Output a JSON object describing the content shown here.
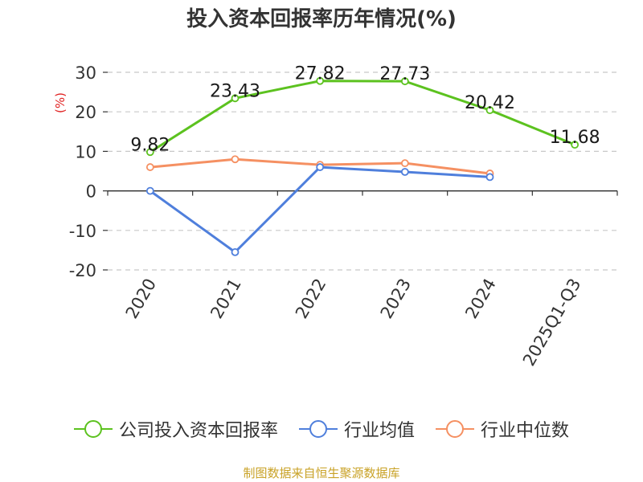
{
  "title": "投入资本回报率历年情况(%)",
  "source": "制图数据来自恒生聚源数据库",
  "chart_data": {
    "type": "line",
    "title": "投入资本回报率历年情况(%)",
    "ylabel": "(%)",
    "ylim": [
      -20,
      30
    ],
    "yticks": [
      30,
      20,
      10,
      0,
      -10,
      -20
    ],
    "grid": true,
    "legend_position": "bottom",
    "categories": [
      "2020",
      "2021",
      "2022",
      "2023",
      "2024",
      "2025Q1-Q3"
    ],
    "series": [
      {
        "name": "公司投入资本回报率",
        "color": "#5cc21f",
        "values": [
          9.82,
          23.43,
          27.82,
          27.73,
          20.42,
          11.68
        ],
        "labels": [
          "9.82",
          "23.43",
          "27.82",
          "27.73",
          "20.42",
          "11.68"
        ]
      },
      {
        "name": "行业均值",
        "color": "#4f7fdc",
        "values": [
          0,
          -15.5,
          6.0,
          4.8,
          3.5,
          null
        ]
      },
      {
        "name": "行业中位数",
        "color": "#f59062",
        "values": [
          6.0,
          8.0,
          6.6,
          7.0,
          4.4,
          null
        ]
      }
    ]
  }
}
